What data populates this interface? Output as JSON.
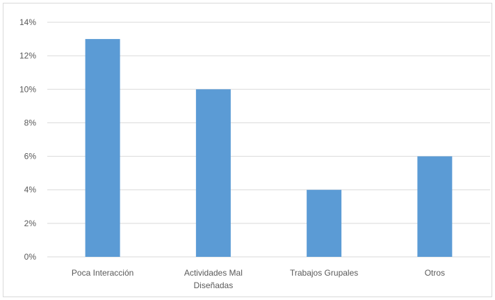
{
  "chart_data": {
    "type": "bar",
    "categories": [
      [
        "Poca Interacción"
      ],
      [
        "Actividades Mal",
        "Diseñadas"
      ],
      [
        "Trabajos Grupales"
      ],
      [
        "Otros"
      ]
    ],
    "values": [
      13,
      10,
      4,
      6
    ],
    "ylim": [
      0,
      14
    ],
    "ytick_labels": [
      "0%",
      "2%",
      "4%",
      "6%",
      "8%",
      "10%",
      "12%",
      "14%"
    ],
    "title": "",
    "xlabel": "",
    "ylabel": "",
    "grid": "horizontal",
    "legend": "none",
    "bar_color": "#5b9bd5",
    "grid_color": "#d9d9d9"
  }
}
